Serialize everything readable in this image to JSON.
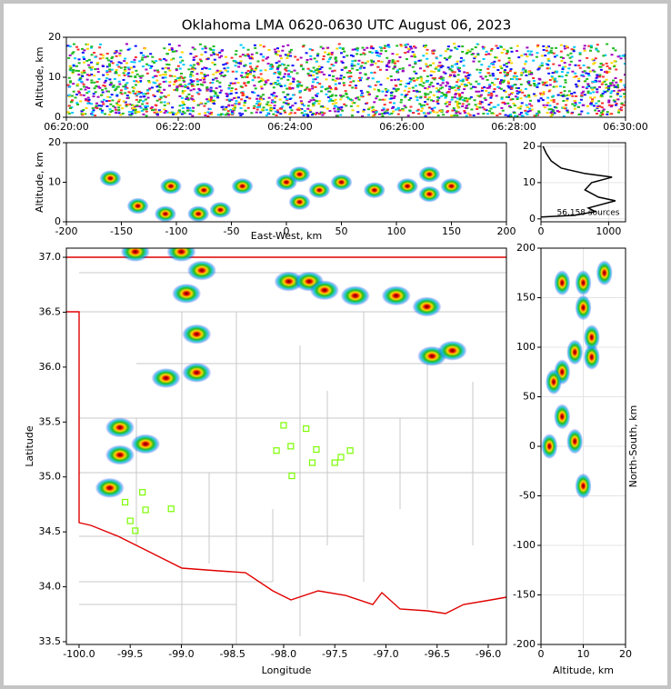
{
  "title": "Oklahoma LMA 0620-0630 UTC August 06, 2023",
  "chart_data": [
    {
      "type": "density",
      "ylabel": "Altitude, km",
      "xlim": [
        0,
        10
      ],
      "xticks": [
        {
          "value": 0,
          "label": "06:20:00"
        },
        {
          "value": 2,
          "label": "06:22:00"
        },
        {
          "value": 4,
          "label": "06:24:00"
        },
        {
          "value": 6,
          "label": "06:26:00"
        },
        {
          "value": 8,
          "label": "06:28:00"
        },
        {
          "value": 10,
          "label": "06:30:00"
        }
      ],
      "ylim": [
        0,
        20
      ],
      "yticks": [
        0,
        10,
        20
      ]
    },
    {
      "type": "scatter",
      "xlabel": "East-West, km",
      "ylabel": "Altitude, km",
      "x": [
        -160,
        -135,
        -110,
        -105,
        -80,
        -75,
        -60,
        -40,
        0,
        12,
        12,
        30,
        50,
        80,
        110,
        130,
        130,
        150
      ],
      "values": [
        11,
        4,
        2,
        9,
        2,
        8,
        3,
        9,
        10,
        12,
        5,
        8,
        10,
        8,
        9,
        12,
        7,
        9
      ],
      "xlim": [
        -200,
        200
      ],
      "xticks": [
        -200,
        -150,
        -100,
        -50,
        0,
        50,
        100,
        150,
        200
      ],
      "ylim": [
        0,
        20
      ],
      "yticks": [
        0,
        10,
        20
      ]
    },
    {
      "type": "line",
      "annotation": "56,158 sources",
      "color": "#000000",
      "x": [
        0,
        500,
        800,
        700,
        1100,
        850,
        650,
        750,
        1050,
        650,
        300,
        150,
        80,
        30
      ],
      "values": [
        0.5,
        1,
        2,
        3,
        5,
        6,
        8,
        10,
        11.5,
        12.5,
        14,
        16,
        18,
        20
      ],
      "xlim": [
        0,
        1250
      ],
      "xticks": [
        0,
        1000
      ],
      "ylim": [
        -0.8,
        21
      ],
      "yticks": [
        0,
        10,
        20
      ],
      "grid": true
    },
    {
      "type": "map",
      "xlabel": "Longitude",
      "ylabel": "Latitude",
      "x": [
        -97.95,
        -97.75,
        -97.6,
        -97.3,
        -96.9,
        -96.6,
        -96.55,
        -96.35,
        -98.85,
        -98.95,
        -98.8,
        -99.15,
        -98.85,
        -99.35,
        -99.6,
        -99.7,
        -99.6,
        -99.45,
        -99.0
      ],
      "values": [
        36.78,
        36.78,
        36.7,
        36.65,
        36.65,
        36.55,
        36.1,
        36.15,
        36.3,
        36.67,
        36.88,
        35.9,
        35.95,
        35.3,
        35.45,
        34.9,
        35.2,
        37.05,
        37.05
      ],
      "stations": {
        "color": "#7cfc00",
        "x": [
          -98.0,
          -97.78,
          -98.07,
          -97.93,
          -97.68,
          -97.35,
          -97.44,
          -97.72,
          -97.5,
          -97.92,
          -99.38,
          -99.55,
          -99.35,
          -99.1,
          -99.5,
          -99.45
        ],
        "values": [
          35.47,
          35.44,
          35.24,
          35.28,
          35.25,
          35.24,
          35.18,
          35.13,
          35.13,
          35.01,
          34.86,
          34.77,
          34.7,
          34.71,
          34.6,
          34.51
        ]
      },
      "xlim": [
        -100.124,
        -95.822
      ],
      "xticks": [
        {
          "value": -100,
          "label": "-100.0"
        },
        {
          "value": -99.5,
          "label": "-99.5"
        },
        {
          "value": -99,
          "label": "-99.0"
        },
        {
          "value": -98.5,
          "label": "-98.5"
        },
        {
          "value": -98,
          "label": "-98.0"
        },
        {
          "value": -97.5,
          "label": "-97.5"
        },
        {
          "value": -97,
          "label": "-97.0"
        },
        {
          "value": -96.5,
          "label": "-96.5"
        },
        {
          "value": -96,
          "label": "-96.0"
        }
      ],
      "ylim": [
        33.475,
        37.083
      ],
      "yticks": [
        {
          "value": 33.5,
          "label": "33.5"
        },
        {
          "value": 34,
          "label": "34.0"
        },
        {
          "value": 34.5,
          "label": "34.5"
        },
        {
          "value": 35,
          "label": "35.0"
        },
        {
          "value": 35.5,
          "label": "35.5"
        },
        {
          "value": 36,
          "label": "36.0"
        },
        {
          "value": 36.5,
          "label": "36.5"
        },
        {
          "value": 37,
          "label": "37.0"
        }
      ]
    },
    {
      "type": "scatter",
      "xlabel": "Altitude, km",
      "ylabel": "North-South, km",
      "x": [
        5,
        10,
        10,
        8,
        12,
        5,
        3,
        2,
        8,
        10,
        5,
        12,
        15
      ],
      "values": [
        165,
        165,
        140,
        95,
        90,
        75,
        65,
        0,
        5,
        -40,
        30,
        110,
        175
      ],
      "xlim": [
        0,
        20
      ],
      "xticks": [
        0,
        10,
        20
      ],
      "ylim": [
        -200,
        200
      ],
      "yticks": [
        -200,
        -150,
        -100,
        -50,
        0,
        50,
        100,
        150,
        200
      ],
      "grid": true
    }
  ]
}
